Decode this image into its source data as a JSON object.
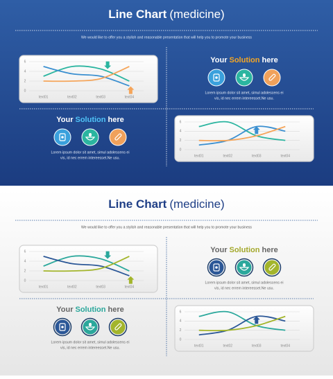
{
  "slides": [
    {
      "title_bold": "Line Chart",
      "title_rest": "(medicine)",
      "subtitle": "We would like to offer you a stylish and reasonable presentation that will help you to promote your business",
      "blocks": [
        {
          "pre": "Your",
          "highlight": "Solution",
          "post": "here",
          "highlight_color": "#f5a623",
          "text": [
            "Lorem ipsum dolor sit amet, simul adolescens ei",
            "vis, id nec errem intereesset.Ne usu."
          ]
        },
        {
          "pre": "Your",
          "highlight": "Solution",
          "post": "here",
          "highlight_color": "#4fc3f7",
          "text": [
            "Lorem ipsum dolor sit amet, simul adolescens ei",
            "vis, id nec errem intereesset.Ne usu."
          ]
        }
      ]
    },
    {
      "title_bold": "Line Chart",
      "title_rest": "(medicine)",
      "subtitle": "We would like to offer you a stylish and reasonable presentation that will help you to promote your business",
      "blocks": [
        {
          "pre": "Your",
          "highlight": "Solution",
          "post": "here",
          "highlight_color": "#a3a82a",
          "text": [
            "Lorem ipsum dolor sit amet, simul adolescens ei",
            "vis, id nec errem intereesset.Ne usu."
          ]
        },
        {
          "pre": "Your",
          "highlight": "Solution",
          "post": "here",
          "highlight_color": "#2aa79b",
          "text": [
            "Lorem ipsum dolor sit amet, simul adolescens ei",
            "vis, id nec errem intereesset.Ne usu."
          ]
        }
      ]
    }
  ],
  "chart_data": [
    {
      "type": "line",
      "categories": [
        "text01",
        "text02",
        "text03",
        "text04"
      ],
      "ylim": [
        0,
        6
      ],
      "yticks": [
        0,
        2,
        4,
        6
      ],
      "grid": true,
      "series": [
        {
          "color": "#2bb5a0",
          "values": [
            3,
            5,
            4.5,
            2
          ]
        },
        {
          "color": "#3a8fd0",
          "values": [
            5,
            3.5,
            3,
            1
          ]
        },
        {
          "color": "#f5a55a",
          "values": [
            2,
            2,
            2.5,
            5
          ]
        }
      ]
    },
    {
      "type": "line",
      "categories": [
        "text01",
        "text02",
        "text03",
        "text04"
      ],
      "ylim": [
        0,
        6
      ],
      "yticks": [
        0,
        2,
        4,
        6
      ],
      "grid": true,
      "series": [
        {
          "color": "#2bb5a0",
          "values": [
            5,
            6,
            3,
            2
          ]
        },
        {
          "color": "#3a8fd0",
          "values": [
            1,
            2,
            5,
            4
          ]
        },
        {
          "color": "#f5a55a",
          "values": [
            2,
            2,
            3,
            5
          ]
        }
      ]
    },
    {
      "type": "line",
      "categories": [
        "text01",
        "text02",
        "text03",
        "text04"
      ],
      "ylim": [
        0,
        6
      ],
      "yticks": [
        0,
        2,
        4,
        6
      ],
      "grid": true,
      "series": [
        {
          "color": "#2ba89c",
          "values": [
            3,
            5,
            4.5,
            2
          ]
        },
        {
          "color": "#2b5797",
          "values": [
            5,
            3.5,
            3,
            1
          ]
        },
        {
          "color": "#a3b52b",
          "values": [
            2,
            2,
            2.5,
            5
          ]
        }
      ]
    },
    {
      "type": "line",
      "categories": [
        "text01",
        "text02",
        "text03",
        "text04"
      ],
      "ylim": [
        0,
        6
      ],
      "yticks": [
        0,
        2,
        4,
        6
      ],
      "grid": true,
      "series": [
        {
          "color": "#2ba89c",
          "values": [
            5,
            6,
            3,
            2
          ]
        },
        {
          "color": "#2b5797",
          "values": [
            1,
            2,
            5,
            4
          ]
        },
        {
          "color": "#a3b52b",
          "values": [
            2,
            2,
            3,
            5
          ]
        }
      ]
    }
  ]
}
